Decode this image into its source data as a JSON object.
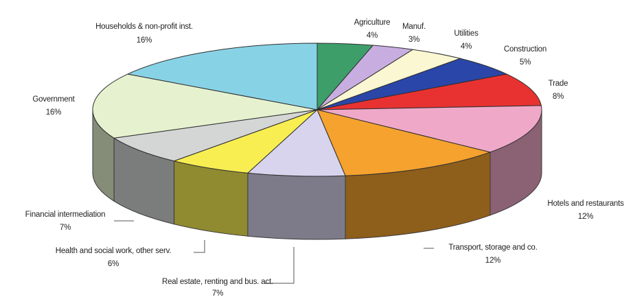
{
  "chart_data": {
    "type": "pie",
    "style": "3d-exploded-none",
    "title": "",
    "unit": "%",
    "slices": [
      {
        "label": "Agriculture",
        "value": 4,
        "pct_label": "4%",
        "color": "#3e9e6a"
      },
      {
        "label": "Manuf.",
        "value": 3,
        "pct_label": "3%",
        "color": "#c8aee0"
      },
      {
        "label": "Utilities",
        "value": 4,
        "pct_label": "4%",
        "color": "#fbf7d2"
      },
      {
        "label": "Construction",
        "value": 5,
        "pct_label": "5%",
        "color": "#2a46a8"
      },
      {
        "label": "Trade",
        "value": 8,
        "pct_label": "8%",
        "color": "#e83232"
      },
      {
        "label": "Hotels and restaurants",
        "value": 12,
        "pct_label": "12%",
        "color": "#f0a8c8"
      },
      {
        "label": "Transport, storage and co.",
        "value": 12,
        "pct_label": "12%",
        "color": "#f5a22e"
      },
      {
        "label": "Real estate, renting and bus. act.",
        "value": 7,
        "pct_label": "7%",
        "color": "#d8d4ee"
      },
      {
        "label": "Health and social work, other serv.",
        "value": 6,
        "pct_label": "6%",
        "color": "#f8ee52"
      },
      {
        "label": "Financial intermediation",
        "value": 7,
        "pct_label": "7%",
        "color": "#d4d6d6"
      },
      {
        "label": "Government",
        "value": 16,
        "pct_label": "16%",
        "color": "#e6f2cf"
      },
      {
        "label": "Households & non-profit inst.",
        "value": 16,
        "pct_label": "16%",
        "color": "#88d2e6"
      }
    ]
  }
}
